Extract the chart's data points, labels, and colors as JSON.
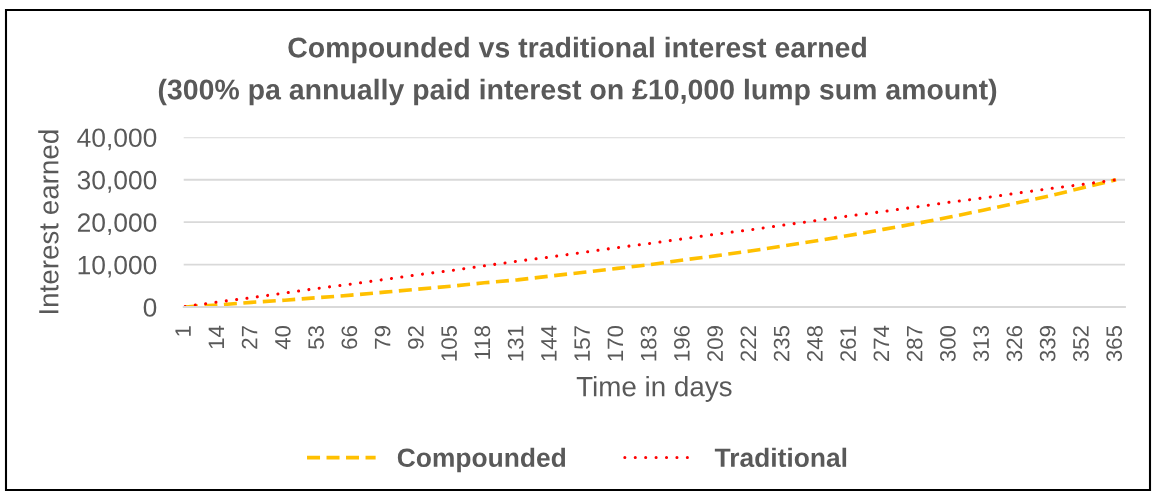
{
  "chart_data": {
    "type": "line",
    "title": "Compounded vs traditional interest earned",
    "subtitle": "(300% pa annually paid interest on £10,000 lump sum amount)",
    "xlabel": "Time in days",
    "ylabel": "Interest earned",
    "x": [
      1,
      14,
      27,
      40,
      53,
      66,
      79,
      92,
      105,
      118,
      131,
      144,
      157,
      170,
      183,
      196,
      209,
      222,
      235,
      248,
      261,
      274,
      287,
      300,
      313,
      326,
      339,
      352,
      365
    ],
    "xlim": [
      0.5,
      368.5
    ],
    "xticks": [
      1,
      14,
      27,
      40,
      53,
      66,
      79,
      92,
      105,
      118,
      131,
      144,
      157,
      170,
      183,
      196,
      209,
      222,
      235,
      248,
      261,
      274,
      287,
      300,
      313,
      326,
      339,
      352,
      365
    ],
    "ylim": [
      0,
      40000
    ],
    "yticks": [
      0,
      {
        "value": 10000,
        "label": "10,000"
      },
      {
        "value": 20000,
        "label": "20,000"
      },
      {
        "value": 30000,
        "label": "30,000"
      },
      {
        "value": 40000,
        "label": "40,000"
      }
    ],
    "grid": "y",
    "legend": "bottom",
    "series": [
      {
        "name": "Compounded",
        "color": "#ffc000",
        "line_style": "dashed",
        "values": [
          0,
          500,
          1100,
          1600,
          2200,
          2800,
          3500,
          4200,
          4900,
          5700,
          6400,
          7300,
          8200,
          9100,
          10000,
          11100,
          12100,
          13200,
          14400,
          15600,
          16900,
          18300,
          19700,
          21200,
          22800,
          24500,
          26200,
          28100,
          30000
        ]
      },
      {
        "name": "Traditional",
        "color": "#ff0000",
        "line_style": "dotted",
        "values": [
          100,
          1200,
          2200,
          3300,
          4400,
          5400,
          6500,
          7600,
          8600,
          9700,
          10800,
          11800,
          12900,
          14000,
          15000,
          16100,
          17200,
          18200,
          19300,
          20400,
          21500,
          22500,
          23600,
          24700,
          25700,
          26800,
          27900,
          28900,
          30000
        ]
      }
    ]
  }
}
